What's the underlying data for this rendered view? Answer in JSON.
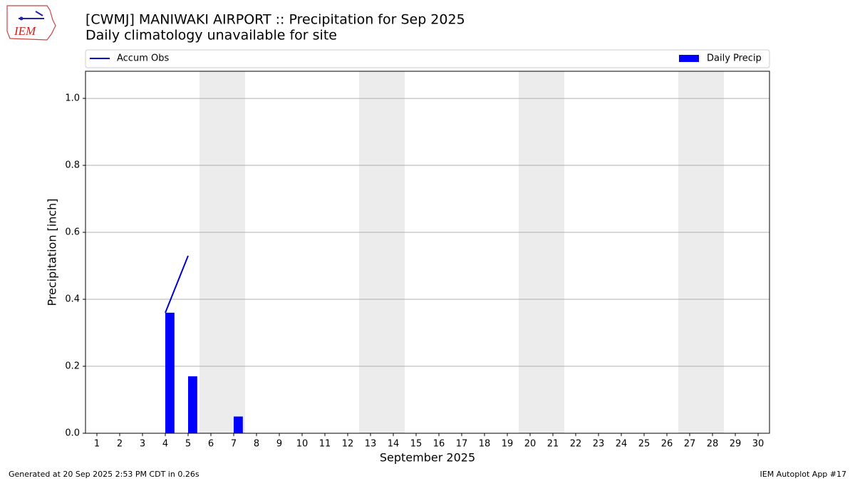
{
  "chart_data": {
    "type": "bar",
    "title": "[CWMJ] MANIWAKI AIRPORT :: Precipitation for Sep 2025",
    "subtitle": "Daily climatology unavailable for site",
    "logo_text": "IEM",
    "xlabel": "September 2025",
    "ylabel": "Precipitation [inch]",
    "x": [
      1,
      2,
      3,
      4,
      5,
      6,
      7,
      8,
      9,
      10,
      11,
      12,
      13,
      14,
      15,
      16,
      17,
      18,
      19,
      20,
      21,
      22,
      23,
      24,
      25,
      26,
      27,
      28,
      29,
      30
    ],
    "xlim": [
      0.5,
      30.5
    ],
    "xticks": [
      1,
      2,
      3,
      4,
      5,
      6,
      7,
      8,
      9,
      10,
      11,
      12,
      13,
      14,
      15,
      16,
      17,
      18,
      19,
      20,
      21,
      22,
      23,
      24,
      25,
      26,
      27,
      28,
      29,
      30
    ],
    "ylim": [
      0,
      1.081
    ],
    "yticks": [
      {
        "value": 0,
        "label": "0.0"
      },
      0.2,
      0.4,
      0.6,
      0.8,
      {
        "value": 1,
        "label": "1.0"
      }
    ],
    "grid": true,
    "weekend_spans": [
      [
        5.5,
        7.5
      ],
      [
        12.5,
        14.5
      ],
      [
        19.5,
        21.5
      ],
      [
        26.5,
        28.5
      ]
    ],
    "series": [
      {
        "name": "Daily Precip",
        "type": "bar",
        "color": "#0000ff",
        "values": [
          0,
          0,
          0,
          0.36,
          0.17,
          0,
          0.05,
          0,
          0,
          0,
          0,
          0,
          0,
          0,
          0,
          0,
          0,
          0,
          0,
          0,
          null,
          null,
          null,
          null,
          null,
          null,
          null,
          null,
          null,
          null
        ]
      },
      {
        "name": "Accum Obs",
        "type": "line",
        "color": "#0000cc",
        "values": [
          null,
          null,
          null,
          0.36,
          0.53,
          null,
          null,
          null,
          null,
          null,
          null,
          null,
          null,
          null,
          null,
          null,
          null,
          null,
          null,
          null,
          null,
          null,
          null,
          null,
          null,
          null,
          null,
          null,
          null,
          null
        ]
      }
    ],
    "legend": "top",
    "footer_left": "Generated at 20 Sep 2025 2:53 PM CDT in 0.26s",
    "footer_right": "IEM Autoplot App #17"
  }
}
